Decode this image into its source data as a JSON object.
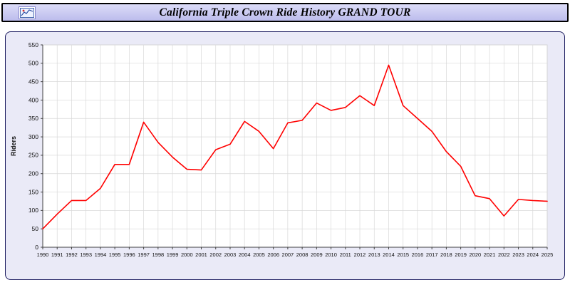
{
  "header": {
    "title": "California Triple Crown Ride History GRAND TOUR",
    "icon": "mini-chart-logo"
  },
  "colors": {
    "titlebar_bg": "#c8c8ee",
    "titlebar_border": "#000000",
    "panel_bg": "#eaeaf7",
    "panel_border": "#1a1a5e",
    "plot_bg": "#ffffff",
    "grid": "#d8d8d8",
    "axis": "#404040",
    "line": "#ff0000"
  },
  "chart_data": {
    "type": "line",
    "title": "California Triple Crown Ride History GRAND TOUR",
    "xlabel": "",
    "ylabel": "Riders",
    "ylim": [
      0,
      550
    ],
    "ytick_step": 50,
    "grid": true,
    "legend": "none",
    "x": [
      1990,
      1991,
      1992,
      1993,
      1994,
      1995,
      1996,
      1997,
      1998,
      1999,
      2000,
      2001,
      2002,
      2003,
      2004,
      2005,
      2006,
      2007,
      2008,
      2009,
      2010,
      2011,
      2012,
      2013,
      2014,
      2015,
      2016,
      2017,
      2018,
      2019,
      2020,
      2021,
      2022,
      2023,
      2024,
      2025
    ],
    "series": [
      {
        "name": "Riders",
        "color": "#ff0000",
        "values": [
          50,
          90,
          127,
          127,
          160,
          225,
          225,
          340,
          285,
          245,
          212,
          210,
          265,
          280,
          342,
          315,
          268,
          338,
          345,
          392,
          372,
          380,
          412,
          385,
          495,
          385,
          350,
          315,
          260,
          220,
          140,
          132,
          85,
          130,
          127,
          125
        ]
      }
    ]
  }
}
